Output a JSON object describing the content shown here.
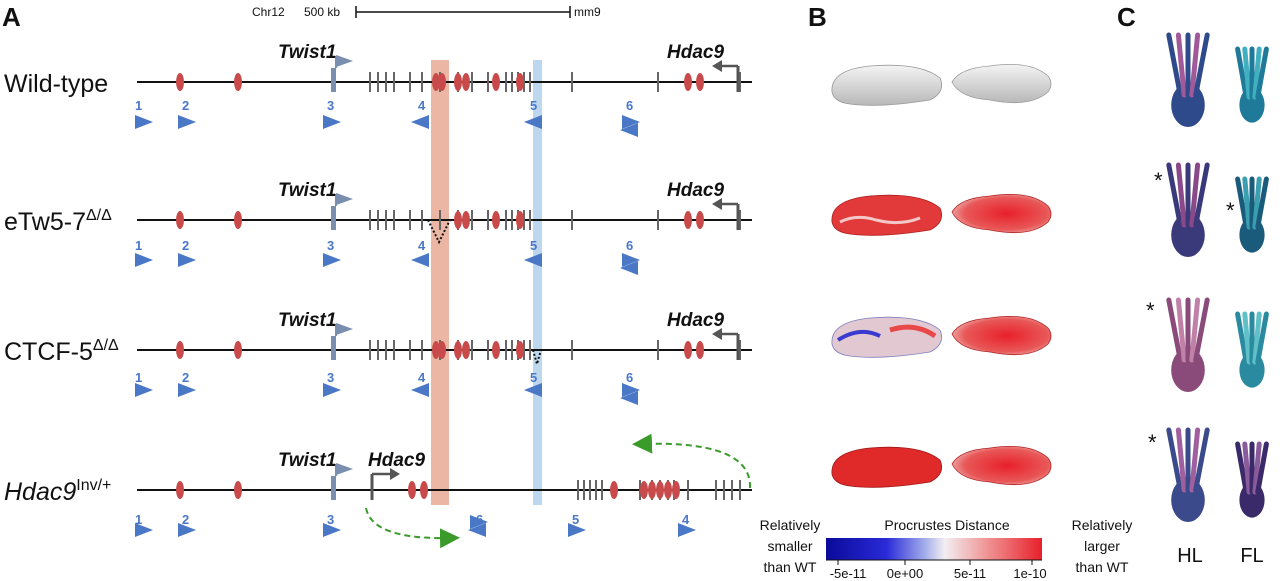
{
  "panels": {
    "a": "A",
    "b": "B",
    "c": "C"
  },
  "scale": {
    "chrom": "Chr12",
    "length": "500 kb",
    "assembly": "mm9"
  },
  "rows": [
    {
      "label": "Wild-type",
      "sup": "",
      "twist": "Twist1",
      "hdac": "Hdac9",
      "nums": [
        "1",
        "2",
        "3",
        "4",
        "5",
        "6"
      ]
    },
    {
      "label": "eTw5-7",
      "sup": "Δ/Δ",
      "twist": "Twist1",
      "hdac": "Hdac9",
      "nums": [
        "1",
        "2",
        "3",
        "4",
        "5",
        "6"
      ]
    },
    {
      "label": "CTCF-5",
      "sup": "Δ/Δ",
      "twist": "Twist1",
      "hdac": "Hdac9",
      "nums": [
        "1",
        "2",
        "3",
        "4",
        "5",
        "6"
      ]
    },
    {
      "label": "Hdac9",
      "sup": "Inv/+",
      "twist": "Twist1",
      "hdac": "Hdac9",
      "nums": [
        "1",
        "2",
        "3",
        "6",
        "5",
        "4"
      ]
    }
  ],
  "legend": {
    "title": "Procrustes Distance",
    "left_l1": "Relatively",
    "left_l2": "smaller",
    "left_l3": "than WT",
    "right_l1": "Relatively",
    "right_l2": "larger",
    "right_l3": "than WT",
    "ticks": [
      "-5e-11",
      "0e+00",
      "5e-11",
      "1e-10"
    ]
  },
  "limbs": {
    "hl": "HL",
    "fl": "FL",
    "star": "*"
  },
  "colors": {
    "ctcf_box": "#e8a993",
    "ctcf_site": "#bdd7ee",
    "enhancer": "#c94a4a",
    "arrow": "#4a78c7",
    "gene": "#555555",
    "loop": "#3a9a2a"
  }
}
